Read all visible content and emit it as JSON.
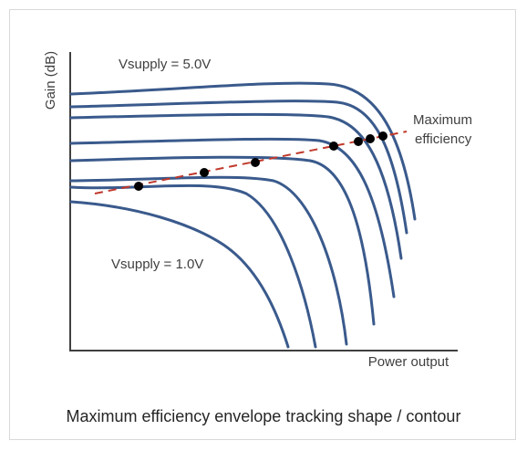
{
  "labels": {
    "yaxis": "Gain (dB)",
    "xaxis": "Power output",
    "top_curve": "Vsupply = 5.0V",
    "bottom_curve": "Vsupply = 1.0V",
    "max_eff_line1": "Maximum",
    "max_eff_line2": "efficiency"
  },
  "caption": "Maximum efficiency envelope tracking shape / contour",
  "colors": {
    "curve": "#3a5a8c",
    "max_efficiency_line": "#c0392b",
    "point": "#000000",
    "axis": "#404040"
  }
}
